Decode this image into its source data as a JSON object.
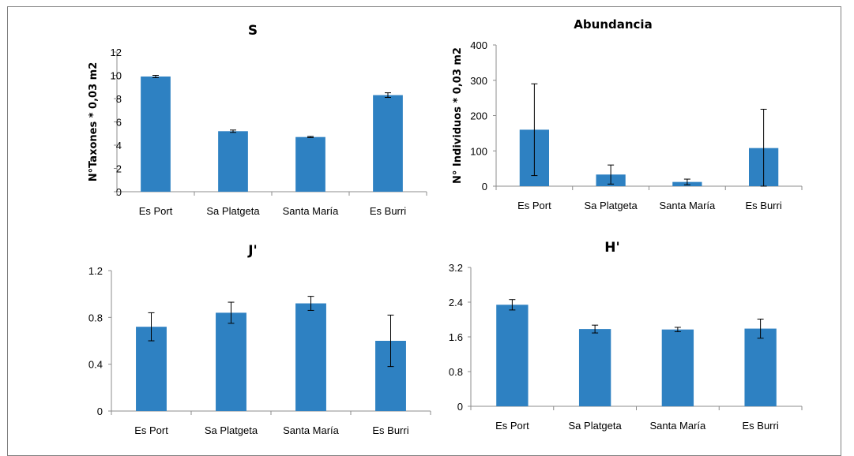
{
  "chart_data": [
    {
      "id": "s",
      "type": "bar",
      "title": "S",
      "ylabel": "N°Taxones * 0,03 m2",
      "categories": [
        "Es Port",
        "Sa Platgeta",
        "Santa María",
        "Es Burri"
      ],
      "values": [
        9.9,
        5.2,
        4.7,
        8.3
      ],
      "errors": [
        0.1,
        0.1,
        0.05,
        0.2
      ],
      "yticks": [
        "0",
        "2",
        "4",
        "6",
        "8",
        "10",
        "12"
      ],
      "ylim": [
        0,
        12
      ],
      "color": "#2e81c2"
    },
    {
      "id": "abundancia",
      "type": "bar",
      "title": "Abundancia",
      "ylabel": "N° Individuos * 0,03 m2",
      "categories": [
        "Es Port",
        "Sa Platgeta",
        "Santa María",
        "Es Burri"
      ],
      "values": [
        160,
        33,
        12,
        108
      ],
      "errors": [
        130,
        27,
        8,
        110
      ],
      "yticks": [
        "0",
        "100",
        "200",
        "300",
        "400"
      ],
      "ylim": [
        0,
        400
      ],
      "color": "#2e81c2"
    },
    {
      "id": "j",
      "type": "bar",
      "title": "J'",
      "ylabel": "",
      "categories": [
        "Es Port",
        "Sa Platgeta",
        "Santa María",
        "Es Burri"
      ],
      "values": [
        0.72,
        0.84,
        0.92,
        0.6
      ],
      "errors": [
        0.12,
        0.09,
        0.06,
        0.22
      ],
      "yticks": [
        "0",
        "0.4",
        "0.8",
        "1.2"
      ],
      "ylim": [
        0,
        1.2
      ],
      "color": "#2e81c2"
    },
    {
      "id": "h",
      "type": "bar",
      "title": "H'",
      "ylabel": "",
      "categories": [
        "Es Port",
        "Sa Platgeta",
        "Santa María",
        "Es Burri"
      ],
      "values": [
        2.34,
        1.78,
        1.77,
        1.79
      ],
      "errors": [
        0.12,
        0.09,
        0.05,
        0.22
      ],
      "yticks": [
        "0",
        "0.8",
        "1.6",
        "2.4",
        "3.2"
      ],
      "ylim": [
        0,
        3.2
      ],
      "color": "#2e81c2"
    }
  ]
}
